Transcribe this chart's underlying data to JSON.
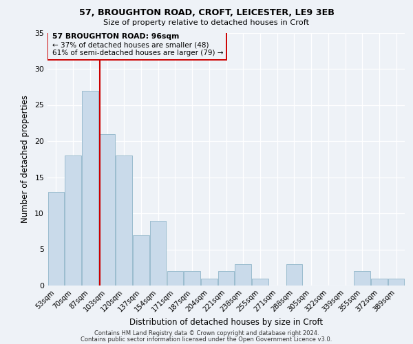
{
  "title1": "57, BROUGHTON ROAD, CROFT, LEICESTER, LE9 3EB",
  "title2": "Size of property relative to detached houses in Croft",
  "xlabel": "Distribution of detached houses by size in Croft",
  "ylabel": "Number of detached properties",
  "bin_labels": [
    "53sqm",
    "70sqm",
    "87sqm",
    "103sqm",
    "120sqm",
    "137sqm",
    "154sqm",
    "171sqm",
    "187sqm",
    "204sqm",
    "221sqm",
    "238sqm",
    "255sqm",
    "271sqm",
    "288sqm",
    "305sqm",
    "322sqm",
    "339sqm",
    "355sqm",
    "372sqm",
    "389sqm"
  ],
  "bar_values": [
    13,
    18,
    27,
    21,
    18,
    7,
    9,
    2,
    2,
    1,
    2,
    3,
    1,
    0,
    3,
    0,
    0,
    0,
    2,
    1,
    1
  ],
  "bar_color": "#c9daea",
  "bar_edge_color": "#9abcce",
  "ylim": [
    0,
    35
  ],
  "yticks": [
    0,
    5,
    10,
    15,
    20,
    25,
    30,
    35
  ],
  "marker_line_color": "#cc0000",
  "annotation_line1": "57 BROUGHTON ROAD: 96sqm",
  "annotation_line2": "← 37% of detached houses are smaller (48)",
  "annotation_line3": "61% of semi-detached houses are larger (79) →",
  "annotation_box_color": "#cc0000",
  "footer1": "Contains HM Land Registry data © Crown copyright and database right 2024.",
  "footer2": "Contains public sector information licensed under the Open Government Licence v3.0.",
  "background_color": "#eef2f7"
}
